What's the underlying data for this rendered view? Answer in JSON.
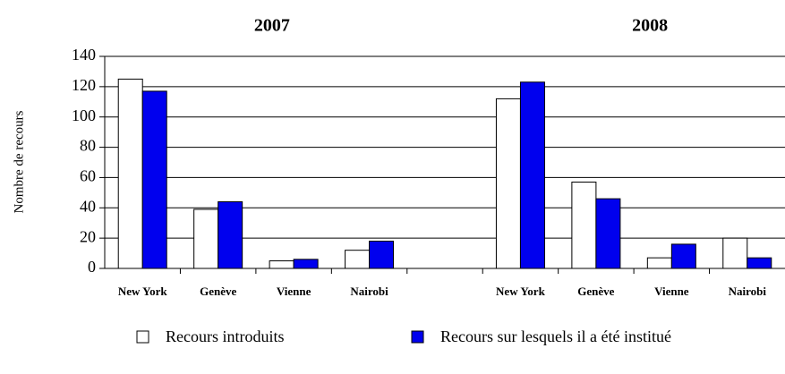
{
  "chart_data": {
    "type": "bar",
    "group_labels": [
      "2007",
      "2008"
    ],
    "y_label": "Nombre de recours",
    "categories": [
      "New York",
      "Genève",
      "Vienne",
      "Nairobi",
      null,
      "New York",
      "Genève",
      "Vienne",
      "Nairobi"
    ],
    "series": [
      {
        "name": "Recours introduits",
        "color": "#ffffff",
        "values": [
          125,
          39,
          5,
          12,
          null,
          112,
          57,
          7,
          20
        ]
      },
      {
        "name": "Recours sur lesquels il a été institué",
        "color": "#0000ee",
        "values": [
          117,
          44,
          6,
          18,
          null,
          123,
          46,
          16,
          7
        ]
      }
    ],
    "ylim": [
      0,
      140
    ],
    "yticks": [
      0,
      20,
      40,
      60,
      80,
      100,
      120,
      140
    ],
    "grid": true
  }
}
